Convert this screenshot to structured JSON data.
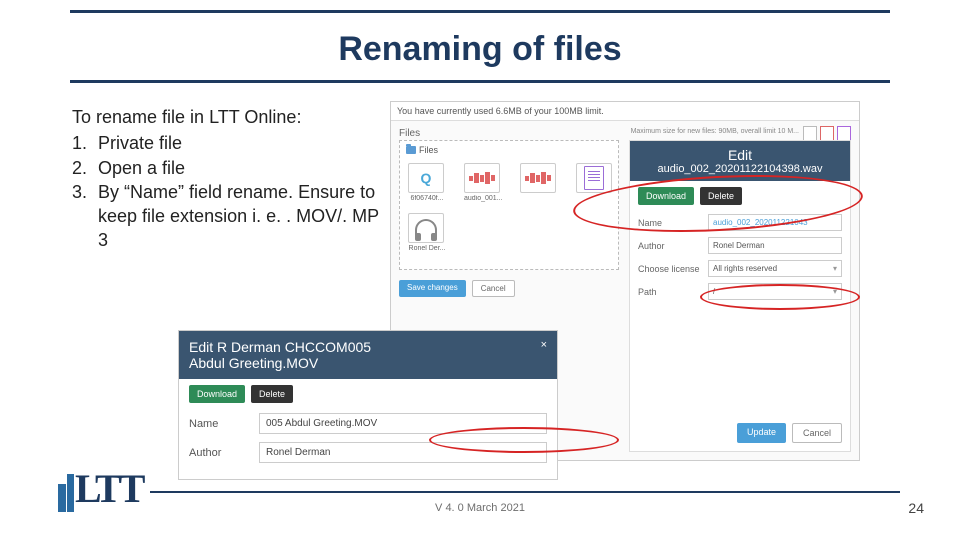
{
  "title": "Renaming of files",
  "instructions": {
    "intro": "To rename file in LTT Online:",
    "items": [
      {
        "n": "1.",
        "text": "Private file"
      },
      {
        "n": "2.",
        "text": "Open a file"
      },
      {
        "n": "3.",
        "text": "By “Name” field rename. Ensure to keep file extension i. e. . MOV/. MP 3"
      }
    ]
  },
  "shot_a": {
    "topbar_left": "You have currently used 6.6MB of your 100MB limit.",
    "maxsize": "Maximum size for new files: 90MB, overall limit 10 M...",
    "section": "Files",
    "filezone_tab": "Files",
    "thumbs": [
      {
        "cap": "6f06740f..."
      },
      {
        "cap": "audio_001..."
      },
      {
        "cap": ""
      }
    ],
    "thumb2_cap": "Ronel Der...",
    "save": "Save changes",
    "cancel": "Cancel",
    "edit_title": "Edit",
    "edit_filename": "audio_002_20201122104398.wav",
    "download": "Download",
    "delete": "Delete",
    "rows": {
      "name": {
        "lbl": "Name",
        "val": "audio_002_202011221043"
      },
      "author": {
        "lbl": "Author",
        "val": "Ronel Derman"
      },
      "license": {
        "lbl": "Choose license",
        "val": "All rights reserved"
      },
      "path": {
        "lbl": "Path",
        "val": "/"
      }
    },
    "update": "Update",
    "cancel2": "Cancel"
  },
  "shot_b": {
    "line1": "Edit R Derman CHCCOM005",
    "line2": "Abdul Greeting.MOV",
    "close": "×",
    "download": "Download",
    "delete": "Delete",
    "name_lbl": "Name",
    "name_val": "005 Abdul Greeting.MOV",
    "author_lbl": "Author",
    "author_val": "Ronel Derman"
  },
  "footer": {
    "logo": "LTT",
    "version": "V 4. 0 March 2021",
    "page": "24"
  },
  "colors": {
    "accent": "#1e3a5f",
    "panel_head": "#3a5570",
    "highlight_red": "#d62424",
    "btn_blue": "#4a9fd8",
    "btn_green": "#2e8b57"
  }
}
